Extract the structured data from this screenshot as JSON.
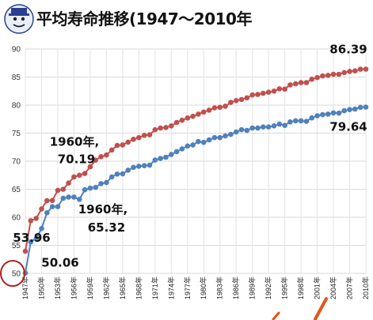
{
  "chart_data": {
    "type": "line",
    "title": "平均寿命推移(1947～2010年",
    "xlabel": "",
    "ylabel": "",
    "ylim": [
      50,
      90
    ],
    "yticks": [
      50,
      55,
      60,
      65,
      70,
      75,
      80,
      85,
      90
    ],
    "grid": true,
    "x_tick_labels": [
      "1947年",
      "1950年",
      "1953年",
      "1956年",
      "1959年",
      "1962年",
      "1965年",
      "1968年",
      "1971年",
      "1974年",
      "1977年",
      "1980年",
      "1983年",
      "1986年",
      "1989年",
      "1992年",
      "1995年",
      "1998年",
      "2001年",
      "2004年",
      "2007年",
      "2010年"
    ],
    "x": [
      1947,
      1948,
      1949,
      1950,
      1951,
      1952,
      1953,
      1954,
      1955,
      1956,
      1957,
      1958,
      1959,
      1960,
      1961,
      1962,
      1963,
      1964,
      1965,
      1966,
      1967,
      1968,
      1969,
      1970,
      1971,
      1972,
      1973,
      1974,
      1975,
      1976,
      1977,
      1978,
      1979,
      1980,
      1981,
      1982,
      1983,
      1984,
      1985,
      1986,
      1987,
      1988,
      1989,
      1990,
      1991,
      1992,
      1993,
      1994,
      1995,
      1996,
      1997,
      1998,
      1999,
      2000,
      2001,
      2002,
      2003,
      2004,
      2005,
      2006,
      2007,
      2008,
      2009,
      2010
    ],
    "series": [
      {
        "name": "",
        "color": "#c0504d",
        "values": [
          53.96,
          59.4,
          59.8,
          61.5,
          62.97,
          63.0,
          64.8,
          65.0,
          66.1,
          67.2,
          67.5,
          67.8,
          69.0,
          70.19,
          70.8,
          71.1,
          72.0,
          72.8,
          72.9,
          73.4,
          73.9,
          74.2,
          74.6,
          74.7,
          75.6,
          75.9,
          76.0,
          76.3,
          76.9,
          77.3,
          77.7,
          78.0,
          78.4,
          78.76,
          79.1,
          79.5,
          79.6,
          79.8,
          80.48,
          80.8,
          81.0,
          81.3,
          81.8,
          81.9,
          82.1,
          82.3,
          82.5,
          82.9,
          82.85,
          83.6,
          83.8,
          84.0,
          84.0,
          84.6,
          84.9,
          85.2,
          85.3,
          85.5,
          85.5,
          85.8,
          86.0,
          86.1,
          86.4,
          86.39
        ]
      },
      {
        "name": "",
        "color": "#4f81bd",
        "values": [
          50.06,
          55.6,
          56.2,
          58.0,
          60.8,
          61.9,
          61.9,
          63.4,
          63.6,
          63.6,
          63.2,
          64.9,
          65.2,
          65.32,
          66.0,
          66.2,
          67.2,
          67.7,
          67.74,
          68.4,
          68.9,
          69.1,
          69.2,
          69.3,
          70.2,
          70.5,
          70.7,
          71.2,
          71.7,
          72.2,
          72.7,
          72.9,
          73.5,
          73.35,
          73.8,
          74.2,
          74.2,
          74.5,
          74.78,
          75.2,
          75.6,
          75.5,
          75.9,
          75.92,
          76.1,
          76.1,
          76.3,
          76.6,
          76.38,
          77.0,
          77.2,
          77.2,
          77.1,
          77.72,
          78.1,
          78.3,
          78.4,
          78.6,
          78.56,
          79.0,
          79.2,
          79.3,
          79.6,
          79.64
        ]
      }
    ],
    "annotations": [
      {
        "text": "86.39",
        "series": 0,
        "x": 2010
      },
      {
        "text": "79.64",
        "series": 1,
        "x": 2010
      },
      {
        "text": "53.96",
        "series": 0,
        "x": 1947
      },
      {
        "text": "50.06",
        "series": 1,
        "x": 1947
      },
      {
        "text": "1960年,",
        "text2": "70.19",
        "series": 0,
        "x": 1960
      },
      {
        "text": "1960年,",
        "text2": "65.32",
        "series": 1,
        "x": 1960
      }
    ]
  }
}
